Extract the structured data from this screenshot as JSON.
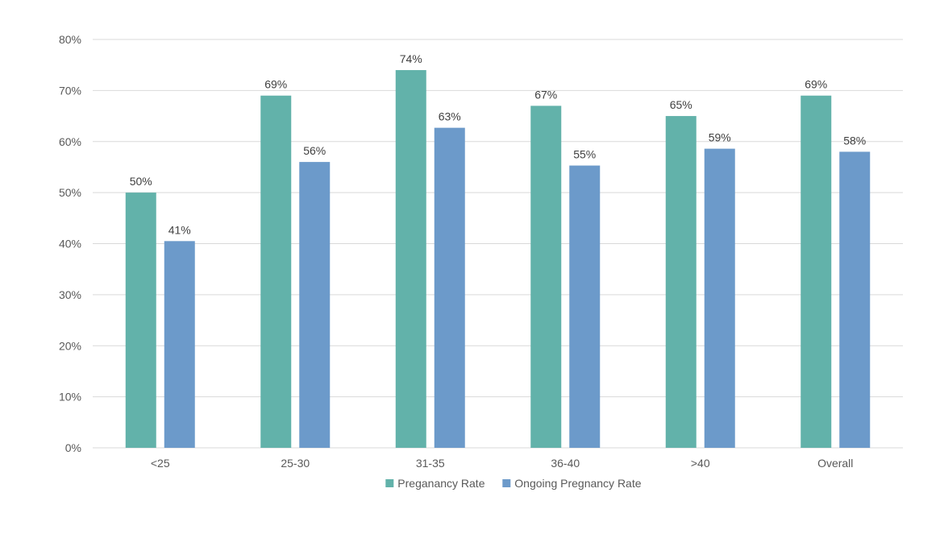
{
  "chart_data": {
    "type": "bar",
    "title": "",
    "xlabel": "",
    "ylabel": "",
    "categories": [
      "<25",
      "25-30",
      "31-35",
      "36-40",
      ">40",
      "Overall"
    ],
    "series": [
      {
        "name": "Preganancy Rate",
        "color": "#62B2AA",
        "values": [
          0.5,
          0.69,
          0.74,
          0.67,
          0.65,
          0.69
        ],
        "labels": [
          "50%",
          "69%",
          "74%",
          "67%",
          "65%",
          "69%"
        ]
      },
      {
        "name": "Ongoing Pregnancy Rate",
        "color": "#6C9ACA",
        "values": [
          0.405,
          0.56,
          0.627,
          0.553,
          0.586,
          0.58
        ],
        "labels": [
          "41%",
          "56%",
          "63%",
          "55%",
          "59%",
          "58%"
        ]
      }
    ],
    "ylim": [
      0,
      0.8
    ],
    "yticks": [
      0,
      0.1,
      0.2,
      0.3,
      0.4,
      0.5,
      0.6,
      0.7,
      0.8
    ],
    "ytick_labels": [
      "0%",
      "10%",
      "20%",
      "30%",
      "40%",
      "50%",
      "60%",
      "70%",
      "80%"
    ],
    "grid": true,
    "legend_position": "bottom",
    "gridline_color": "#D9D9D9"
  }
}
